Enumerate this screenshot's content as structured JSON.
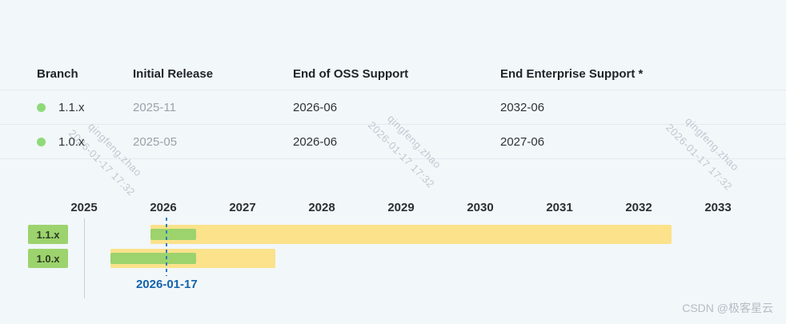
{
  "watermarks": {
    "diagonal_line1": "qingfeng.zhao",
    "diagonal_line2": "2026-01-17 17:32",
    "csdn_credit": "CSDN @极客星云"
  },
  "table": {
    "headers": {
      "branch": "Branch",
      "initial_release": "Initial Release",
      "end_oss": "End of OSS Support",
      "end_enterprise": "End Enterprise Support *"
    },
    "rows": [
      {
        "branch": "1.1.x",
        "initial_release": "2025-11",
        "end_oss": "2026-06",
        "end_enterprise": "2032-06"
      },
      {
        "branch": "1.0.x",
        "initial_release": "2025-05",
        "end_oss": "2026-06",
        "end_enterprise": "2027-06"
      }
    ]
  },
  "chart_data": {
    "type": "gantt",
    "x_axis": {
      "min": 2025,
      "max": 2033.5,
      "ticks": [
        2025,
        2026,
        2027,
        2028,
        2029,
        2030,
        2031,
        2032,
        2033
      ]
    },
    "series": [
      {
        "label": "1.1.x",
        "start": "2025-11",
        "oss_end": "2026-06",
        "enterprise_end": "2032-06"
      },
      {
        "label": "1.0.x",
        "start": "2025-05",
        "oss_end": "2026-06",
        "enterprise_end": "2027-06"
      }
    ],
    "today_marker": {
      "date": "2026-01-17",
      "label": "2026-01-17"
    },
    "colors": {
      "oss_green": "#9cd36d",
      "enterprise_yellow": "#fbe28b",
      "marker_blue": "#2e7fbf",
      "marker_label_blue": "#1463aa",
      "status_dot_green": "#8fda78"
    }
  }
}
